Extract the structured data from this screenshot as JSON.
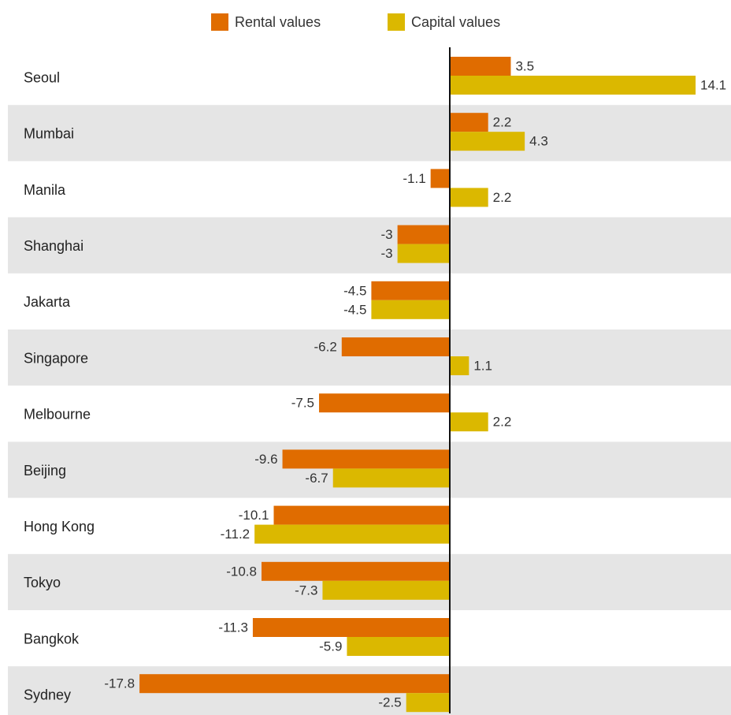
{
  "chart_data": {
    "type": "bar",
    "legend": "top",
    "categories": [
      "Seoul",
      "Mumbai",
      "Manila",
      "Shanghai",
      "Jakarta",
      "Singapore",
      "Melbourne",
      "Beijing",
      "Hong Kong",
      "Tokyo",
      "Bangkok",
      "Sydney"
    ],
    "series": [
      {
        "name": "Rental values",
        "color": "#e06c00",
        "values": [
          3.5,
          2.2,
          -1.1,
          -3,
          -4.5,
          -6.2,
          -7.5,
          -9.6,
          -10.1,
          -10.8,
          -11.3,
          -17.8
        ]
      },
      {
        "name": "Capital values",
        "color": "#dbb800",
        "values": [
          14.1,
          4.3,
          2.2,
          -3,
          -4.5,
          1.1,
          2.2,
          -6.7,
          -11.2,
          -7.3,
          -5.9,
          -2.5
        ]
      }
    ]
  }
}
